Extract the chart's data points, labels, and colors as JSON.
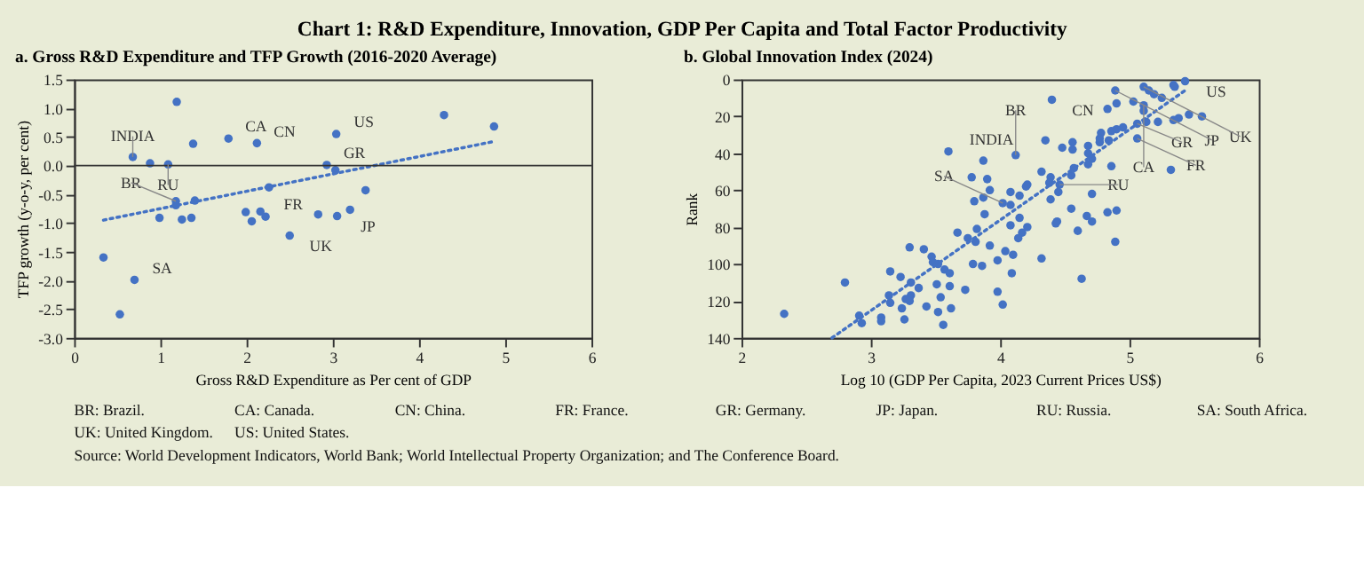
{
  "chart_data": [
    {
      "type": "other",
      "title": "Chart 1: R&D Expenditure, Innovation, GDP Per Capita and Total Factor Productivity",
      "annotations": [
        "BR: Brazil.",
        "CA: Canada.",
        "CN: China.",
        "FR: France.",
        "GR: Germany.",
        "JP: Japan.",
        "RU: Russia.",
        "SA: South Africa.",
        "UK: United Kingdom.",
        "US: United States.",
        "Source: World Development Indicators, World Bank; World Intellectual Property Organization; and The Conference Board."
      ]
    },
    {
      "type": "scatter",
      "title": "a. Gross R&D Expenditure and TFP Growth (2016-2020 Average)",
      "xlabel": "Gross R&D Expenditure as Per cent of GDP",
      "ylabel": "TFP growth (y-o-y, per cent)",
      "xlim": [
        0,
        6
      ],
      "xticks": [
        0,
        1,
        2,
        3,
        4,
        5,
        6
      ],
      "ylim": [
        -3,
        1.5
      ],
      "yticks": [
        {
          "value": -3,
          "label": "-3.0"
        },
        -2.5,
        {
          "value": -2,
          "label": "-2.0"
        },
        -1.5,
        {
          "value": -1,
          "label": "-1.0"
        },
        -0.5,
        {
          "value": 0,
          "label": "0.0"
        },
        0.5,
        {
          "value": 1,
          "label": "1.0"
        },
        1.5
      ],
      "grid": false,
      "ref_lines": [
        {
          "axis": "y",
          "value": 0,
          "color": "#333333"
        }
      ],
      "series": [
        {
          "type": "scatter",
          "marker": "circle",
          "color": "#4472c4",
          "x": [
            1.19,
            0.68,
            0.88,
            1.09,
            1.38,
            1.79,
            2.12,
            3.04,
            4.29,
            4.87,
            2.93,
            3.03,
            3.38,
            2.26,
            1.4,
            1.18,
            1.18,
            0.99,
            1.25,
            1.36,
            1.99,
            2.06,
            2.16,
            2.22,
            2.5,
            2.83,
            3.05,
            3.2,
            0.34,
            0.7,
            0.53
          ],
          "values": [
            1.11,
            0.15,
            0.04,
            0.02,
            0.38,
            0.47,
            0.39,
            0.55,
            0.88,
            0.68,
            0.01,
            -0.08,
            -0.43,
            -0.38,
            -0.61,
            -0.62,
            -0.69,
            -0.91,
            -0.94,
            -0.91,
            -0.81,
            -0.97,
            -0.8,
            -0.89,
            -1.22,
            -0.85,
            -0.88,
            -0.77,
            -1.6,
            -1.99,
            -2.59
          ]
        },
        {
          "type": "line",
          "color": "#4472c4",
          "line_style": "dotted",
          "x": [
            0.34,
            4.87
          ],
          "values": [
            -0.95,
            0.42
          ]
        }
      ],
      "annotations": [
        {
          "text": "INDIA",
          "x": 0.68,
          "y": 0.15
        },
        {
          "text": "RU",
          "x": 1.09,
          "y": 0.02
        },
        {
          "text": "CA",
          "x": 1.79,
          "y": 0.47
        },
        {
          "text": "CN",
          "x": 2.12,
          "y": 0.39
        },
        {
          "text": "US",
          "x": 3.04,
          "y": 0.55
        },
        {
          "text": "GR",
          "x": 2.93,
          "y": 0.01
        },
        {
          "text": "BR",
          "x": 1.18,
          "y": -0.62
        },
        {
          "text": "FR",
          "x": 2.22,
          "y": -0.89
        },
        {
          "text": "UK",
          "x": 2.5,
          "y": -1.22
        },
        {
          "text": "JP",
          "x": 3.05,
          "y": -0.88
        },
        {
          "text": "SA",
          "x": 0.7,
          "y": -1.99
        }
      ]
    },
    {
      "type": "scatter",
      "title": "b. Global Innovation Index (2024)",
      "xlabel": "Log 10 (GDP Per Capita, 2023 Current Prices US$)",
      "ylabel": "Rank",
      "xlim": [
        2,
        6
      ],
      "xticks": [
        2,
        3,
        4,
        5,
        6
      ],
      "ylim": [
        140,
        0
      ],
      "yticks": [
        0,
        20,
        40,
        60,
        80,
        100,
        120,
        140
      ],
      "grid": false,
      "series": [
        {
          "type": "scatter",
          "marker": "circle",
          "color": "#4472c4",
          "x": [
            5.43,
            5.34,
            5.35,
            5.11,
            5.15,
            4.89,
            5.19,
            5.25,
            4.4,
            5.03,
            4.9,
            5.11,
            4.83,
            5.11,
            5.46,
            5.56,
            5.38,
            5.34,
            5.13,
            5.22,
            5.06,
            4.95,
            4.9,
            4.86,
            4.78,
            5.06,
            4.77,
            4.84,
            4.77,
            4.35,
            4.56,
            4.68,
            4.48,
            4.56,
            3.6,
            4.12,
            4.68,
            4.71,
            4.68,
            4.86,
            5.32,
            3.87,
            4.57,
            4.55,
            4.32,
            4.39,
            3.78,
            3.9,
            4.38,
            4.46,
            4.21,
            4.2,
            4.45,
            3.92,
            4.08,
            4.15,
            4.71,
            3.87,
            3.8,
            4.39,
            4.02,
            4.08,
            4.55,
            4.9,
            4.83,
            3.88,
            4.15,
            4.67,
            4.71,
            4.44,
            4.43,
            4.08,
            3.82,
            4.21,
            4.6,
            3.67,
            4.17,
            4.14,
            3.75,
            3.81,
            4.89,
            3.92,
            3.3,
            4.04,
            4.1,
            3.41,
            3.47,
            4.32,
            3.98,
            3.79,
            3.48,
            3.52,
            3.86,
            3.57,
            3.61,
            4.09,
            4.63,
            3.15,
            3.23,
            3.31,
            2.8,
            3.51,
            3.37,
            3.61,
            3.73,
            3.98,
            3.14,
            3.31,
            3.54,
            3.15,
            3.27,
            3.3,
            4.02,
            3.24,
            3.43,
            3.62,
            3.52,
            2.33,
            2.91,
            3.08,
            3.26,
            2.93,
            3.08,
            3.56
          ],
          "values": [
            1,
            3,
            4,
            4,
            6,
            6,
            8,
            10,
            11,
            12,
            13,
            14,
            16,
            17,
            19,
            20,
            21,
            22,
            23,
            23,
            24,
            26,
            27,
            28,
            29,
            32,
            32,
            33,
            34,
            33,
            34,
            36,
            37,
            38,
            39,
            41,
            40,
            43,
            46,
            47,
            49,
            44,
            48,
            52,
            50,
            53,
            53,
            54,
            56,
            57,
            57,
            58,
            61,
            60,
            61,
            63,
            62,
            64,
            66,
            65,
            67,
            68,
            70,
            71,
            72,
            73,
            75,
            74,
            77,
            77,
            78,
            79,
            81,
            80,
            82,
            83,
            83,
            86,
            86,
            88,
            88,
            90,
            91,
            93,
            95,
            92,
            96,
            97,
            98,
            100,
            99,
            100,
            101,
            103,
            105,
            105,
            108,
            104,
            107,
            110,
            110,
            111,
            113,
            112,
            114,
            115,
            117,
            117,
            118,
            121,
            119,
            120,
            122,
            124,
            123,
            124,
            126,
            127,
            128,
            129,
            130,
            132,
            131,
            133
          ]
        },
        {
          "type": "line",
          "color": "#4472c4",
          "line_style": "dotted",
          "x": [
            2.7,
            5.45
          ],
          "values": [
            140,
            5
          ]
        }
      ],
      "annotations": [
        {
          "text": "CN",
          "x": 4.4,
          "y": 11
        },
        {
          "text": "JP",
          "x": 4.89,
          "y": 6
        },
        {
          "text": "UK",
          "x": 5.11,
          "y": 4
        },
        {
          "text": "US",
          "x": 5.43,
          "y": 1
        },
        {
          "text": "CA",
          "x": 5.11,
          "y": 14
        },
        {
          "text": "GR",
          "x": 5.06,
          "y": 24
        },
        {
          "text": "FR",
          "x": 5.06,
          "y": 32
        },
        {
          "text": "INDIA",
          "x": 3.6,
          "y": 39
        },
        {
          "text": "BR",
          "x": 4.12,
          "y": 41
        },
        {
          "text": "RU",
          "x": 4.46,
          "y": 57
        },
        {
          "text": "SA",
          "x": 4.02,
          "y": 67
        }
      ]
    }
  ]
}
